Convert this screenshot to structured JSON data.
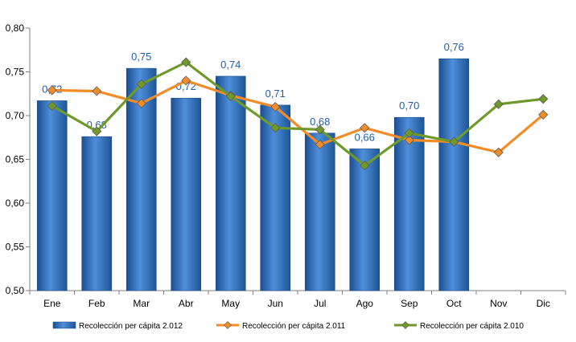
{
  "chart_data": {
    "type": "bar",
    "categories": [
      "Ene",
      "Feb",
      "Mar",
      "Abr",
      "May",
      "Jun",
      "Jul",
      "Ago",
      "Sep",
      "Oct",
      "Nov",
      "Dic"
    ],
    "ylim": [
      0.5,
      0.8
    ],
    "yticks": [
      "0,50",
      "0,55",
      "0,60",
      "0,65",
      "0,70",
      "0,75",
      "0,80"
    ],
    "grid": false,
    "legend_position": "bottom",
    "series": [
      {
        "name": "Recolección per cápita 2.012",
        "type": "bar",
        "color": "#2e74c6",
        "values": [
          0.717,
          0.676,
          0.754,
          0.72,
          0.745,
          0.712,
          0.68,
          0.662,
          0.698,
          0.765,
          null,
          null
        ],
        "labels": [
          "0,72",
          "0,68",
          "0,75",
          "0,72",
          "0,74",
          "0,71",
          "0,68",
          "0,66",
          "0,70",
          "0,76",
          "",
          ""
        ]
      },
      {
        "name": "Recolección per cápita 2.011",
        "type": "line",
        "color": "#f28c28",
        "values": [
          0.729,
          0.728,
          0.714,
          0.74,
          0.723,
          0.71,
          0.667,
          0.686,
          0.672,
          0.67,
          0.658,
          0.701
        ]
      },
      {
        "name": "Recolección per cápita 2.010",
        "type": "line",
        "color": "#6f9a2a",
        "values": [
          0.711,
          0.682,
          0.736,
          0.761,
          0.722,
          0.686,
          0.684,
          0.643,
          0.68,
          0.67,
          0.713,
          0.719
        ]
      }
    ]
  }
}
